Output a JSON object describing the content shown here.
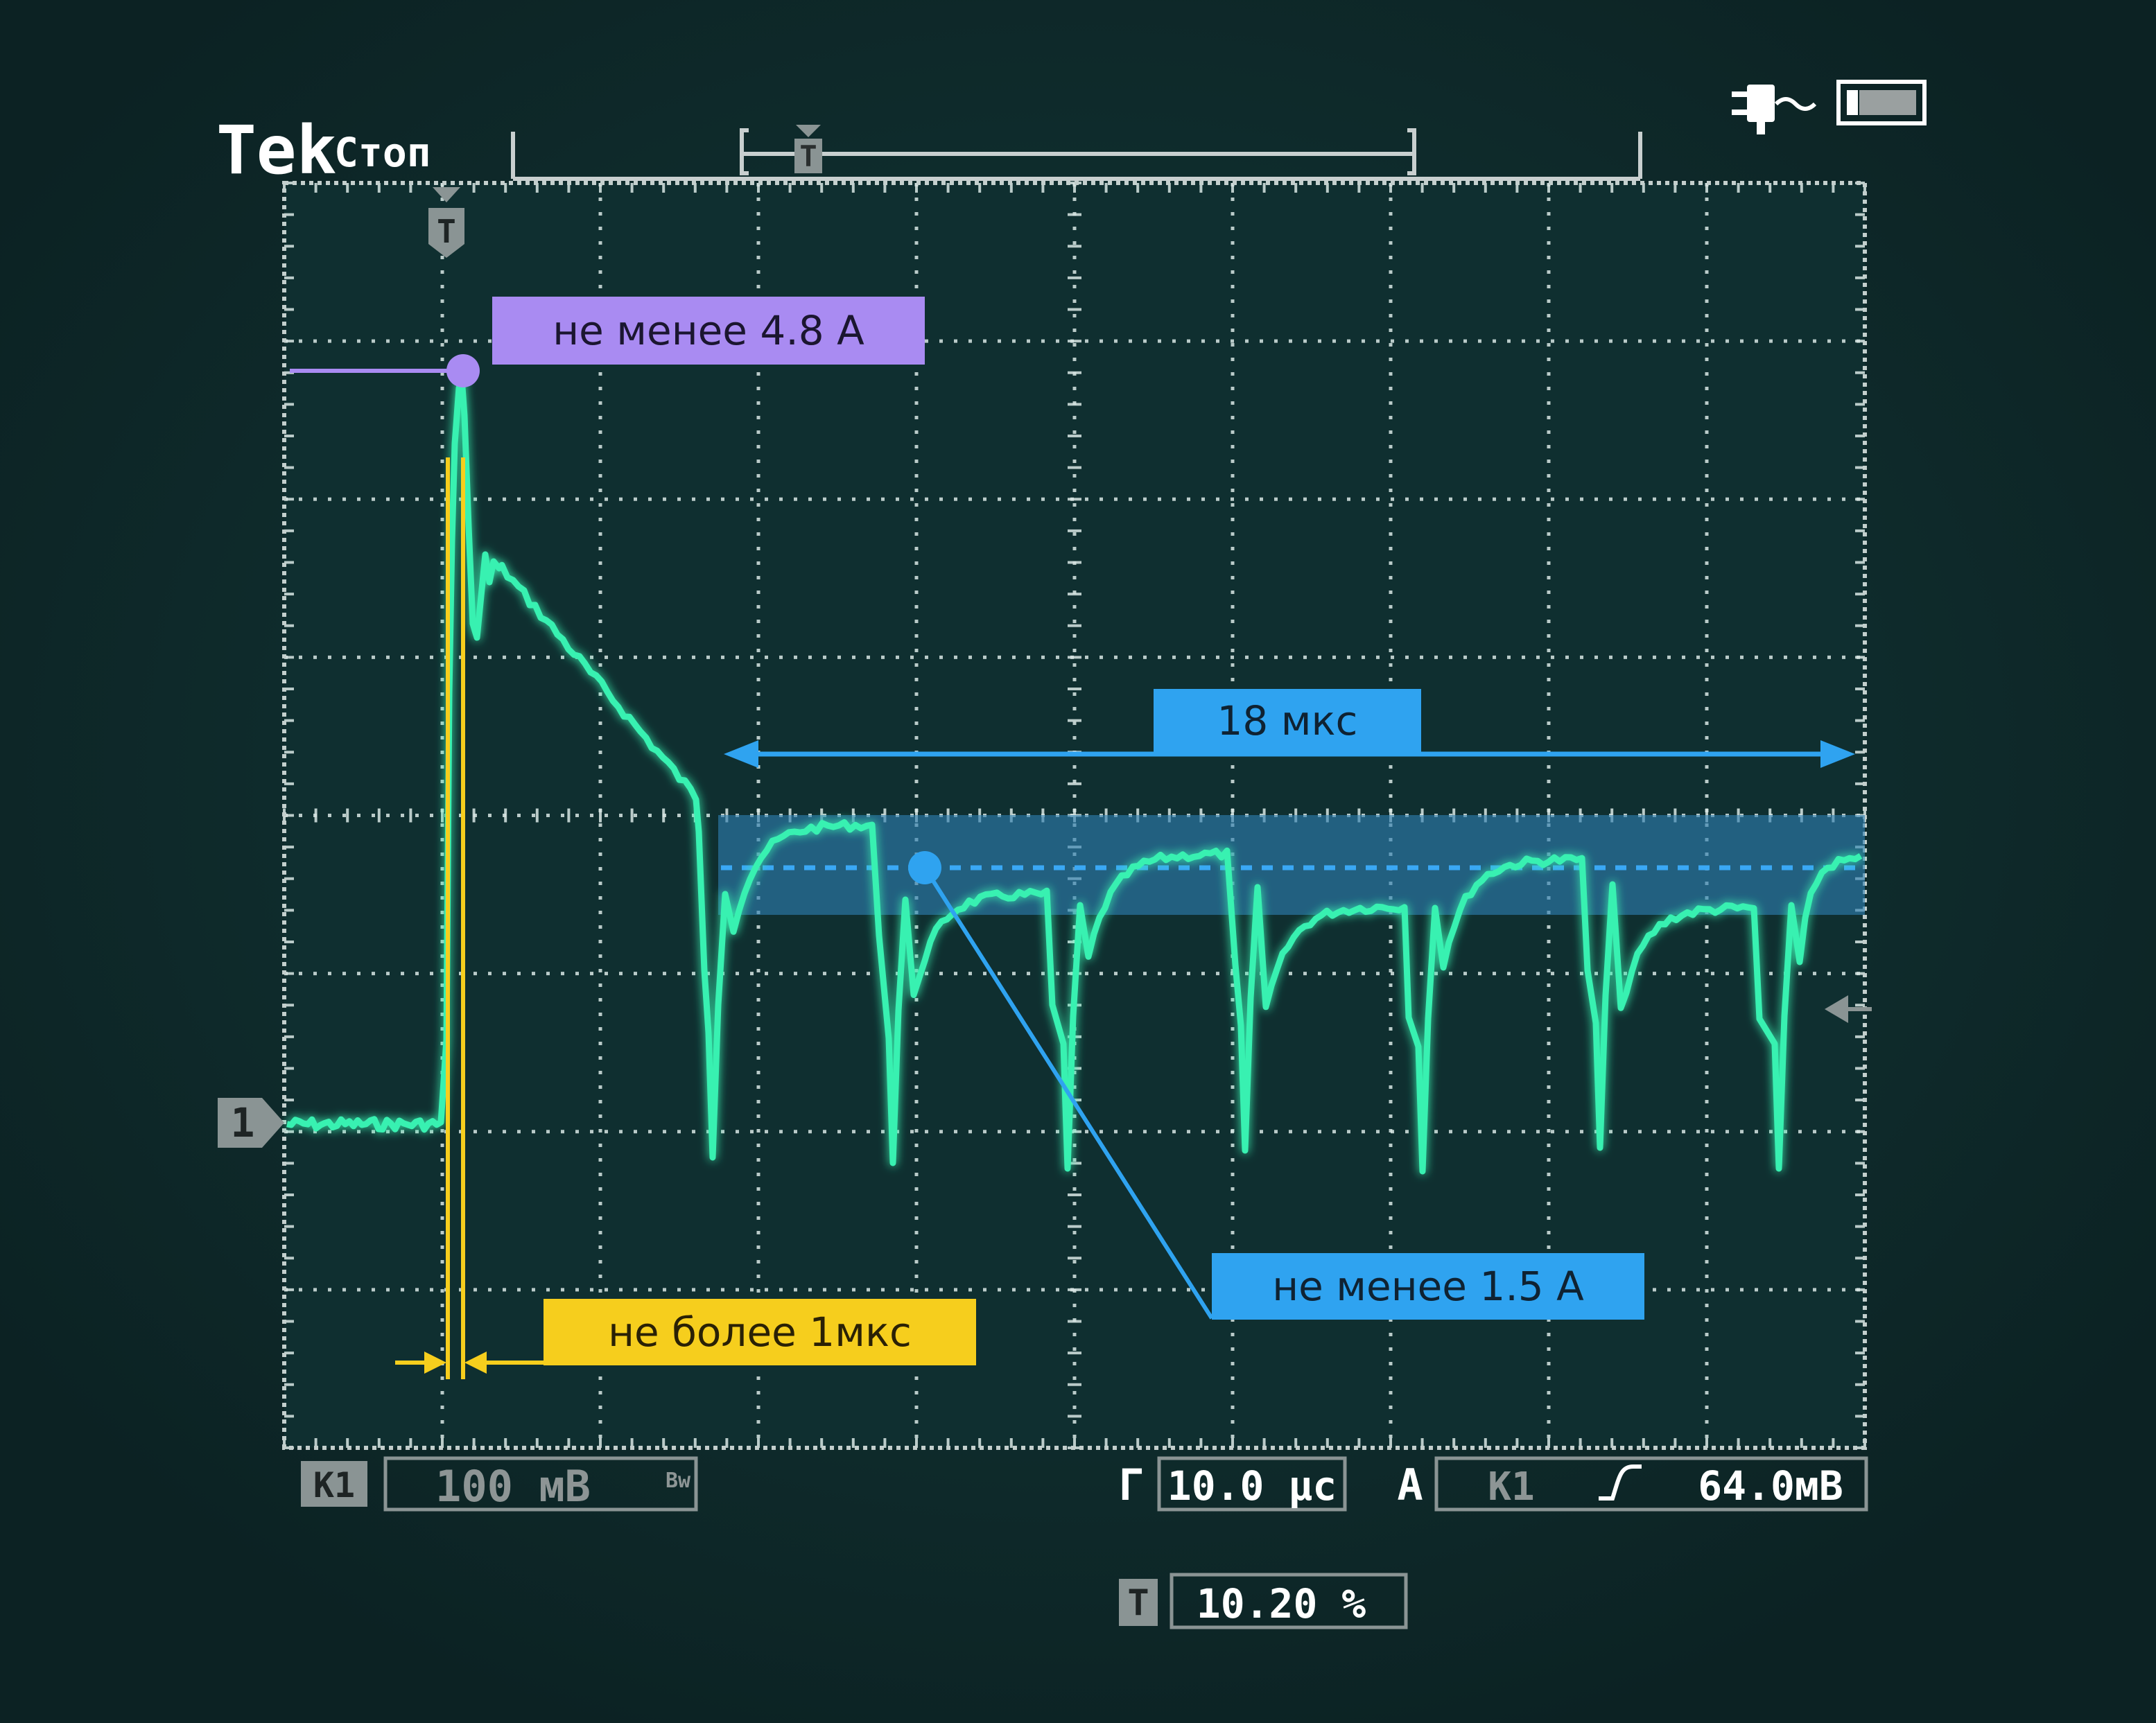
{
  "header": {
    "brand": "Tek",
    "status": "Стоп"
  },
  "icons": {
    "power": "ac-power-plug-icon",
    "battery": "battery-icon",
    "trigger_marker": "trigger-position-marker-icon",
    "channel_marker": "channel-1-ground-marker-icon",
    "trigger_level_arrow": "trigger-level-arrow-icon",
    "trigger_slope": "rising-edge-icon"
  },
  "markers": {
    "trigger": "T",
    "channel": "1"
  },
  "annotations": {
    "peak": "не менее 4.8 A",
    "duration": "18 мкс",
    "rise_time": "не более 1мкс",
    "steady": "не менее 1.5 A"
  },
  "bottom_bar": {
    "channel_label": "К1",
    "channel_scale": "100 мВ",
    "bandwidth": "Bw",
    "timebase_label": "Г",
    "timebase": "10.0 μс",
    "trigger_label": "А",
    "trigger_source": "К1",
    "trigger_level": "64.0мВ",
    "trigger_pos_label": "T",
    "trigger_pos": "10.20 %"
  },
  "colors": {
    "background": "#0d2324",
    "screen": "#0f2e2f",
    "trace": "#38f0b0",
    "grid": "#d8e6e4",
    "peak_annotation": "#a98bf2",
    "duration_annotation": "#2fa3f0",
    "rise_annotation": "#f6ce1d",
    "steady_band": "#2f7fb2"
  }
}
